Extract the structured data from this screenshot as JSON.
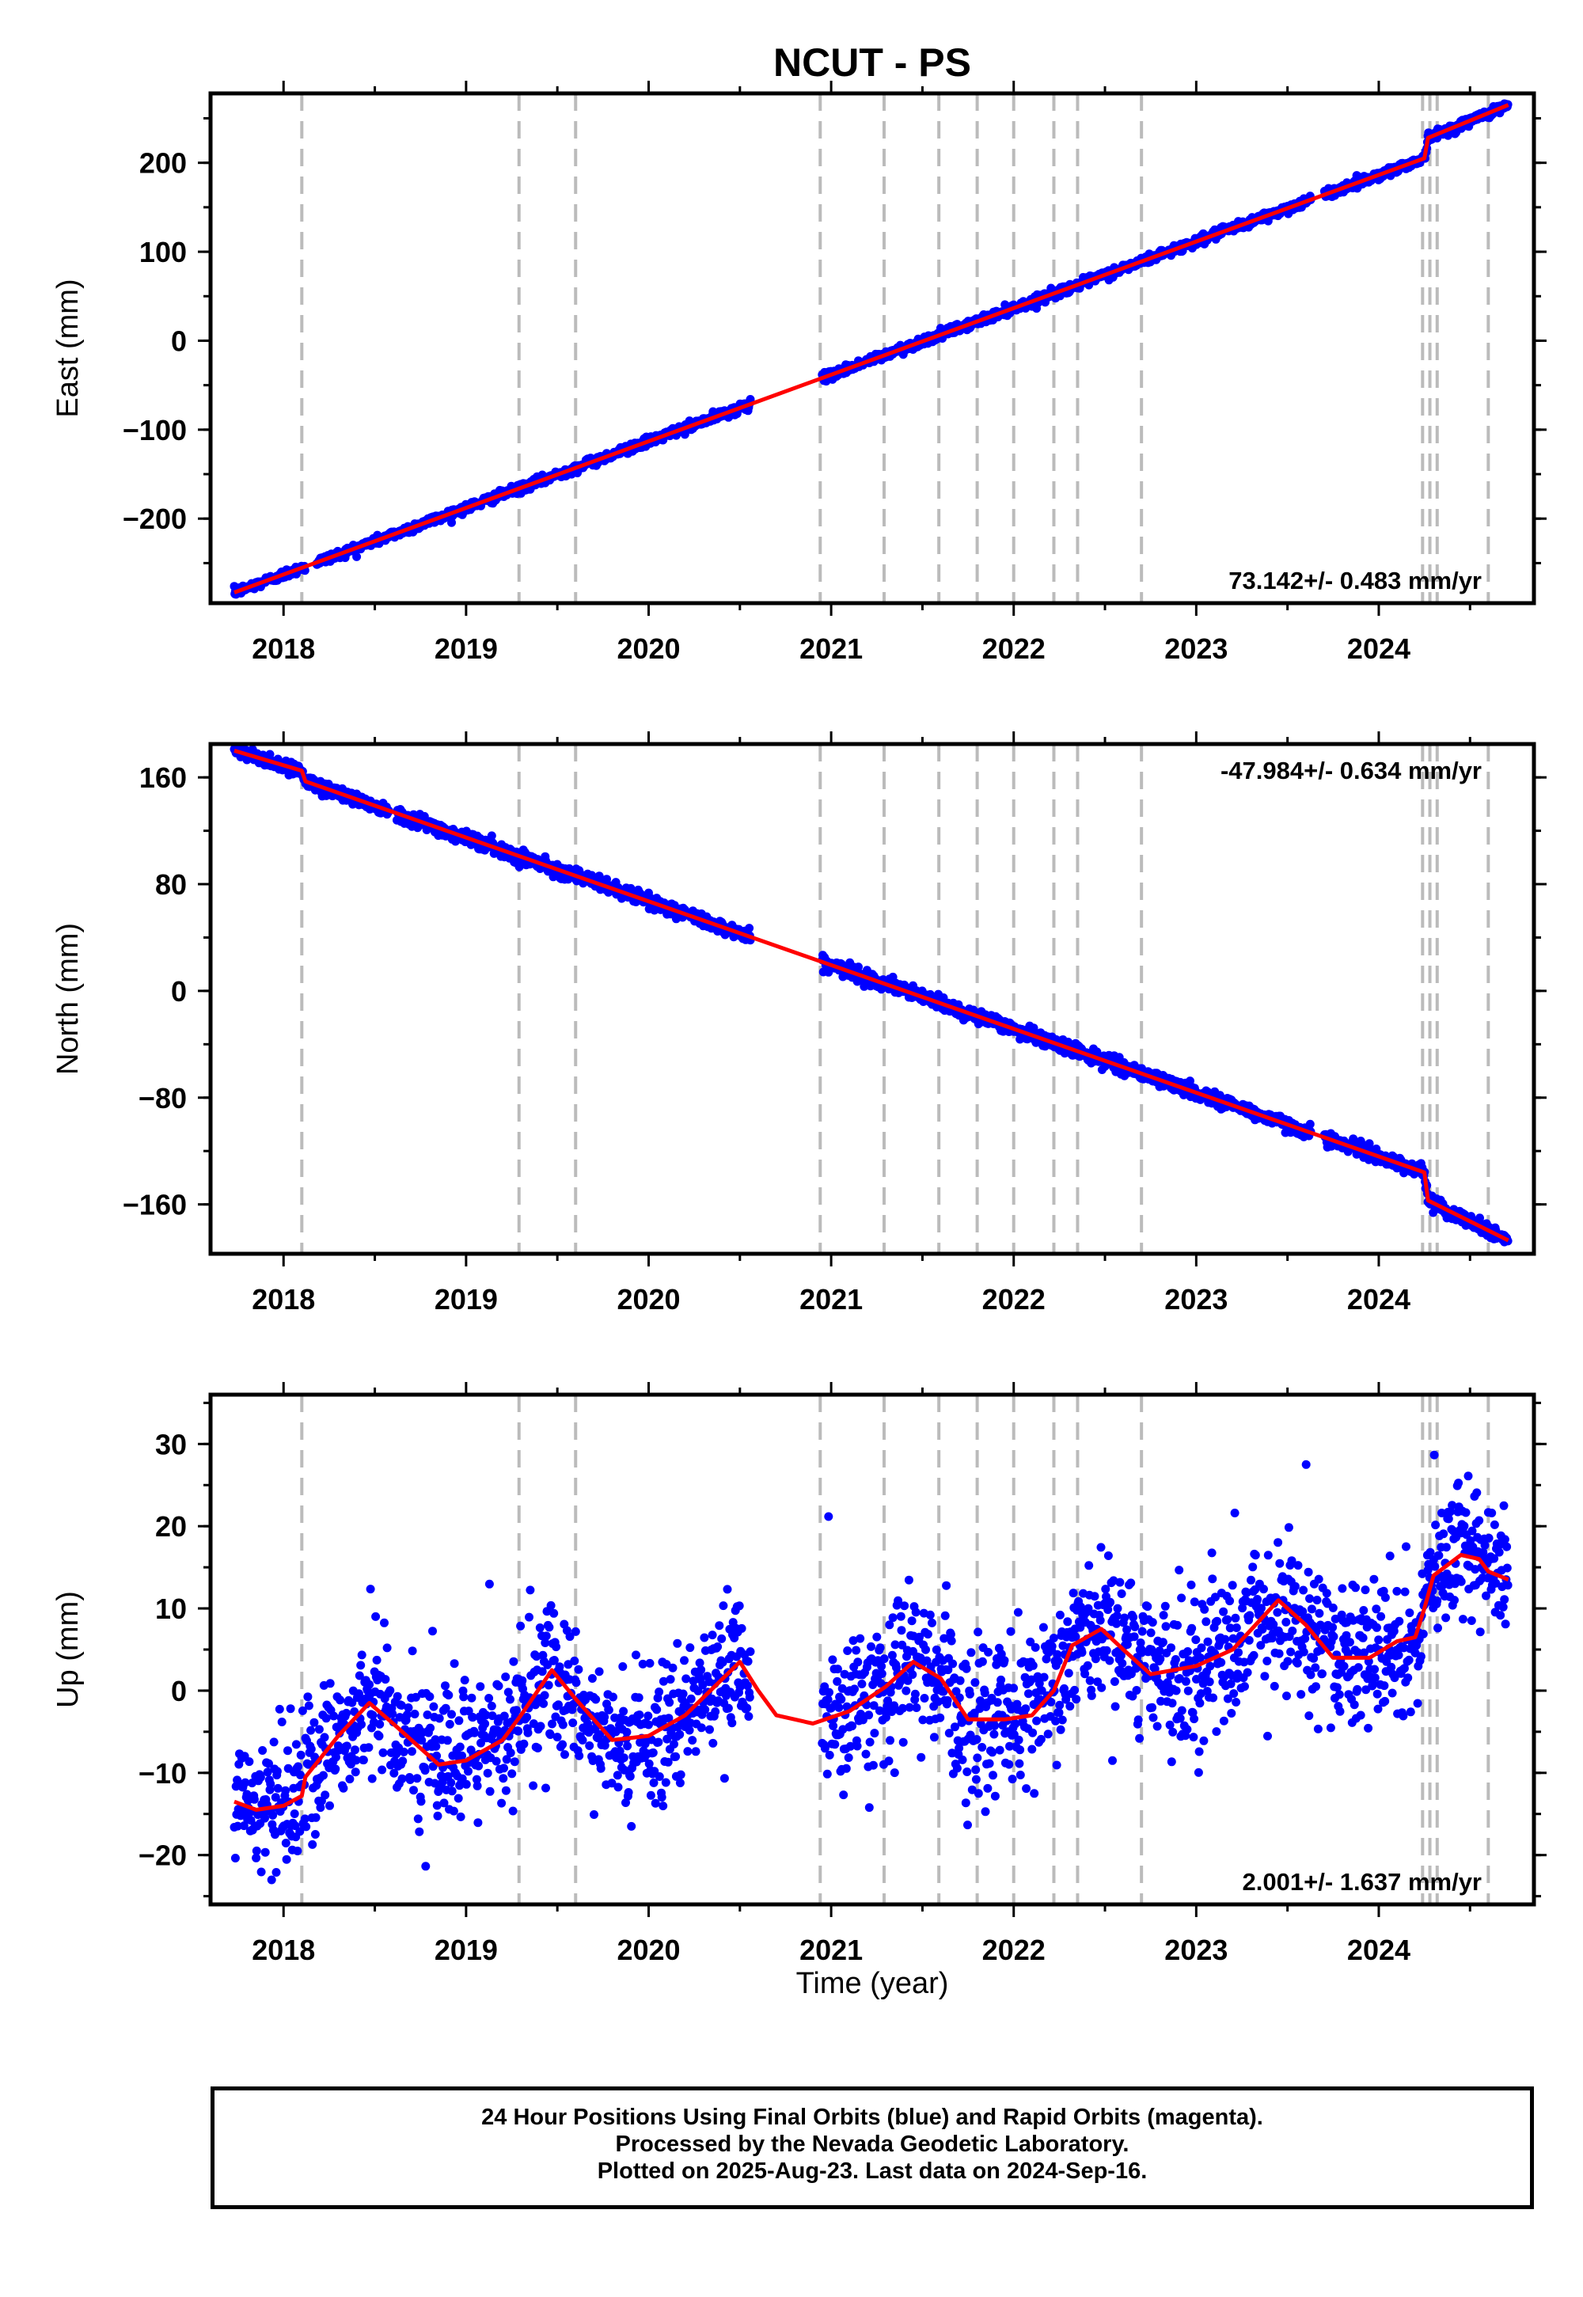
{
  "title": "NCUT - PS",
  "x_axis_label": "Time (year)",
  "footer": {
    "line1": "24 Hour Positions Using Final Orbits (blue) and Rapid Orbits (magenta).",
    "line2": "Processed by the Nevada Geodetic Laboratory.",
    "line3": "Plotted on 2025-Aug-23. Last data on 2024-Sep-16."
  },
  "colors": {
    "data_points": "#0000ff",
    "model_fit": "#ff0000",
    "event_lines": "#bbbbbb",
    "frame": "#000000"
  },
  "chart_data": [
    {
      "type": "scatter",
      "component": "East",
      "ylabel": "East (mm)",
      "xlabel": "",
      "xlim": [
        2017.6,
        2024.85
      ],
      "ylim": [
        -295,
        278
      ],
      "xticks": [
        2018,
        2019,
        2020,
        2021,
        2022,
        2023,
        2024
      ],
      "yticks": [
        -200,
        -100,
        0,
        100,
        200
      ],
      "velocity_label": "73.142+/- 0.483 mm/yr",
      "velocity_label_position": "bottom-right",
      "series": [
        {
          "kind": "points",
          "x_start": 2017.73,
          "x_end": 2024.71,
          "gaps": [
            [
              2018.12,
              2018.18
            ],
            [
              2020.56,
              2020.95
            ],
            [
              2023.63,
              2023.7
            ]
          ],
          "model_keypoints": [
            [
              2017.73,
              -283
            ],
            [
              2024.25,
              205
            ],
            [
              2024.27,
              228
            ],
            [
              2024.71,
              265
            ]
          ],
          "scatter_mm": 2.5
        },
        {
          "kind": "model",
          "keypoints": [
            [
              2017.73,
              -283
            ],
            [
              2024.25,
              205
            ],
            [
              2024.27,
              228
            ],
            [
              2024.71,
              265
            ]
          ]
        }
      ]
    },
    {
      "type": "scatter",
      "component": "North",
      "ylabel": "North (mm)",
      "xlabel": "",
      "xlim": [
        2017.6,
        2024.85
      ],
      "ylim": [
        -197,
        185
      ],
      "xticks": [
        2018,
        2019,
        2020,
        2021,
        2022,
        2023,
        2024
      ],
      "yticks": [
        -160,
        -80,
        0,
        80,
        160
      ],
      "velocity_label": "-47.984+/- 0.634 mm/yr",
      "velocity_label_position": "top-right",
      "series": [
        {
          "kind": "points",
          "x_start": 2017.73,
          "x_end": 2024.71,
          "gaps": [
            [
              2018.58,
              2018.62
            ],
            [
              2020.56,
              2020.95
            ],
            [
              2023.63,
              2023.7
            ]
          ],
          "model_keypoints": [
            [
              2017.73,
              180
            ],
            [
              2018.1,
              165
            ],
            [
              2018.12,
              157
            ],
            [
              2024.25,
              -136
            ],
            [
              2024.27,
              -157
            ],
            [
              2024.71,
              -187
            ]
          ],
          "scatter_mm": 2.5
        },
        {
          "kind": "model",
          "keypoints": [
            [
              2017.73,
              180
            ],
            [
              2018.1,
              165
            ],
            [
              2018.12,
              157
            ],
            [
              2024.25,
              -136
            ],
            [
              2024.27,
              -157
            ],
            [
              2024.71,
              -187
            ]
          ]
        }
      ]
    },
    {
      "type": "scatter",
      "component": "Up",
      "ylabel": "Up (mm)",
      "xlabel": "Time (year)",
      "xlim": [
        2017.6,
        2024.85
      ],
      "ylim": [
        -26,
        36
      ],
      "xticks": [
        2018,
        2019,
        2020,
        2021,
        2022,
        2023,
        2024
      ],
      "yticks": [
        -20,
        -10,
        0,
        10,
        20,
        30
      ],
      "velocity_label": "2.001+/- 1.637 mm/yr",
      "velocity_label_position": "bottom-right",
      "series": [
        {
          "kind": "points",
          "x_start": 2017.73,
          "x_end": 2024.71,
          "gaps": [
            [
              2020.56,
              2020.95
            ]
          ],
          "model_keypoints": [
            [
              2017.73,
              -13.5
            ],
            [
              2017.85,
              -14.5
            ],
            [
              2018.0,
              -14
            ],
            [
              2018.1,
              -12.8
            ],
            [
              2018.12,
              -10.5
            ],
            [
              2018.3,
              -5.5
            ],
            [
              2018.47,
              -1.5
            ],
            [
              2018.6,
              -4
            ],
            [
              2018.85,
              -9
            ],
            [
              2019.0,
              -8.5
            ],
            [
              2019.2,
              -6
            ],
            [
              2019.3,
              -3
            ],
            [
              2019.47,
              2.5
            ],
            [
              2019.6,
              -1
            ],
            [
              2019.8,
              -6
            ],
            [
              2020.0,
              -5.5
            ],
            [
              2020.2,
              -3
            ],
            [
              2020.5,
              3.5
            ],
            [
              2020.6,
              0
            ],
            [
              2020.7,
              -3
            ],
            [
              2020.9,
              -4
            ],
            [
              2021.1,
              -2.5
            ],
            [
              2021.3,
              0.5
            ],
            [
              2021.45,
              3.5
            ],
            [
              2021.6,
              1.5
            ],
            [
              2021.75,
              -3.5
            ],
            [
              2021.95,
              -3.5
            ],
            [
              2022.1,
              -3
            ],
            [
              2022.22,
              0
            ],
            [
              2022.32,
              5.5
            ],
            [
              2022.48,
              7.5
            ],
            [
              2022.6,
              5
            ],
            [
              2022.75,
              2
            ],
            [
              2023.0,
              3
            ],
            [
              2023.2,
              5
            ],
            [
              2023.45,
              11
            ],
            [
              2023.6,
              8
            ],
            [
              2023.75,
              4
            ],
            [
              2023.95,
              4
            ],
            [
              2024.1,
              6
            ],
            [
              2024.2,
              6.5
            ],
            [
              2024.25,
              10
            ],
            [
              2024.3,
              14
            ],
            [
              2024.45,
              16.5
            ],
            [
              2024.55,
              16
            ],
            [
              2024.6,
              14.5
            ],
            [
              2024.71,
              13.5
            ]
          ],
          "scatter_mm": 4.3
        },
        {
          "kind": "model",
          "keypoints": [
            [
              2017.73,
              -13.5
            ],
            [
              2017.85,
              -14.5
            ],
            [
              2018.0,
              -14
            ],
            [
              2018.1,
              -12.8
            ],
            [
              2018.12,
              -10.5
            ],
            [
              2018.3,
              -5.5
            ],
            [
              2018.47,
              -1.5
            ],
            [
              2018.6,
              -4
            ],
            [
              2018.85,
              -9
            ],
            [
              2019.0,
              -8.5
            ],
            [
              2019.2,
              -6
            ],
            [
              2019.3,
              -3
            ],
            [
              2019.47,
              2.5
            ],
            [
              2019.6,
              -1
            ],
            [
              2019.8,
              -6
            ],
            [
              2020.0,
              -5.5
            ],
            [
              2020.2,
              -3
            ],
            [
              2020.5,
              3.5
            ],
            [
              2020.6,
              0
            ],
            [
              2020.7,
              -3
            ],
            [
              2020.9,
              -4
            ],
            [
              2021.1,
              -2.5
            ],
            [
              2021.3,
              0.5
            ],
            [
              2021.45,
              3.5
            ],
            [
              2021.6,
              1.5
            ],
            [
              2021.75,
              -3.5
            ],
            [
              2021.95,
              -3.5
            ],
            [
              2022.1,
              -3
            ],
            [
              2022.22,
              0
            ],
            [
              2022.32,
              5.5
            ],
            [
              2022.48,
              7.5
            ],
            [
              2022.6,
              5
            ],
            [
              2022.75,
              2
            ],
            [
              2023.0,
              3
            ],
            [
              2023.2,
              5
            ],
            [
              2023.45,
              11
            ],
            [
              2023.6,
              8
            ],
            [
              2023.75,
              4
            ],
            [
              2023.95,
              4
            ],
            [
              2024.1,
              6
            ],
            [
              2024.2,
              6.5
            ],
            [
              2024.25,
              10
            ],
            [
              2024.3,
              14
            ],
            [
              2024.45,
              16.5
            ],
            [
              2024.55,
              16
            ],
            [
              2024.6,
              14.5
            ],
            [
              2024.71,
              13.5
            ]
          ]
        }
      ]
    }
  ],
  "event_lines_x": [
    2018.1,
    2019.29,
    2019.6,
    2020.94,
    2021.29,
    2021.59,
    2021.8,
    2022.0,
    2022.22,
    2022.35,
    2022.7,
    2024.24,
    2024.28,
    2024.32,
    2024.6
  ]
}
